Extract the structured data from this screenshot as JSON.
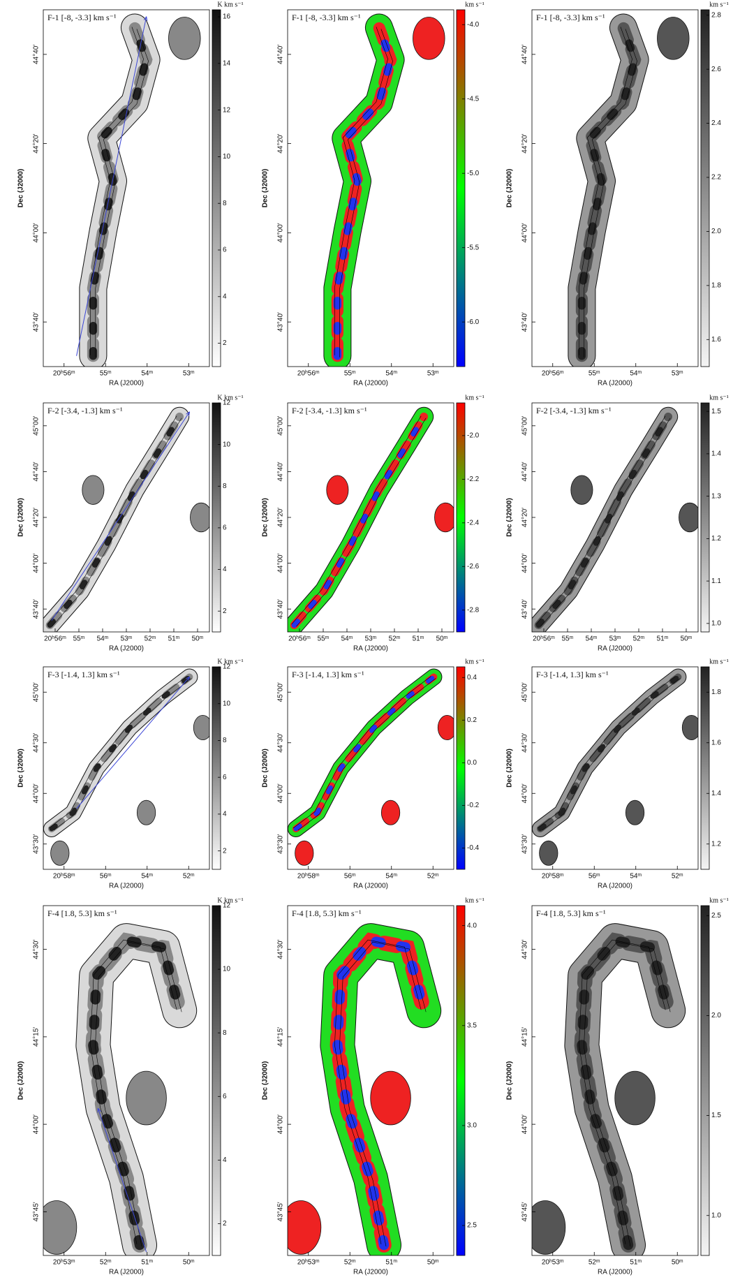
{
  "axis_labels": {
    "x": "RA (J2000)",
    "y": "Dec (J2000)"
  },
  "rows": [
    {
      "xticks": [
        "20ʰ56ᵐ",
        "55ᵐ",
        "54ᵐ",
        "53ᵐ"
      ],
      "yticks": [
        "43°40′",
        "44°00′",
        "44°20′",
        "44°40′"
      ],
      "panels": [
        {
          "title": "F-1 [-8, -3.3] km s⁻¹",
          "colorbar": {
            "unit": "K km s⁻¹",
            "lim": [
              1,
              16.3
            ],
            "ticks": [
              2,
              4,
              6,
              8,
              10,
              12,
              14,
              16
            ]
          }
        },
        {
          "title": "F-1 [-8, -3.3] km s⁻¹",
          "colorbar": {
            "unit": "km s⁻¹",
            "lim": [
              -6.3,
              -3.9
            ],
            "ticks": [
              {
                "value": -6,
                "label": "-6.0"
              },
              -5.5,
              {
                "value": -5,
                "label": "-5.0"
              },
              -4.5,
              {
                "value": -4,
                "label": "-4.0"
              }
            ]
          }
        },
        {
          "title": "F-1 [-8, -3.3] km s⁻¹",
          "colorbar": {
            "unit": "km s⁻¹",
            "lim": [
              1.5,
              2.82
            ],
            "ticks": [
              1.6,
              1.8,
              {
                "value": 2,
                "label": "2.0"
              },
              2.2,
              2.4,
              2.6,
              2.8
            ]
          }
        }
      ]
    },
    {
      "xticks": [
        "20ʰ56ᵐ",
        "55ᵐ",
        "54ᵐ",
        "53ᵐ",
        "52ᵐ",
        "51ᵐ",
        "50ᵐ"
      ],
      "yticks": [
        "43°40′",
        "44°00′",
        "44°20′",
        "44°40′",
        "45°00′"
      ],
      "panels": [
        {
          "title": "F-2 [-3.4, -1.3] km s⁻¹",
          "colorbar": {
            "unit": "K km s⁻¹",
            "lim": [
              1,
              12
            ],
            "ticks": [
              2,
              4,
              6,
              8,
              10,
              12
            ]
          }
        },
        {
          "title": "F-2 [-3.4, -1.3] km s⁻¹",
          "colorbar": {
            "unit": "km s⁻¹",
            "lim": [
              -2.9,
              -1.85
            ],
            "ticks": [
              -2.8,
              -2.6,
              -2.4,
              -2.2,
              {
                "value": -2,
                "label": "-2.0"
              }
            ]
          }
        },
        {
          "title": "F-2 [-3.4, -1.3] km s⁻¹",
          "colorbar": {
            "unit": "km s⁻¹",
            "lim": [
              0.98,
              1.52
            ],
            "ticks": [
              {
                "value": 1,
                "label": "1.0"
              },
              1.1,
              1.2,
              1.3,
              1.4,
              1.5
            ]
          }
        }
      ]
    },
    {
      "xticks": [
        "20ʰ58ᵐ",
        "56ᵐ",
        "54ᵐ",
        "52ᵐ"
      ],
      "yticks": [
        "43°30′",
        "44°00′",
        "44°30′",
        "45°00′"
      ],
      "panels": [
        {
          "title": "F-3 [-1.4, 1.3] km s⁻¹",
          "colorbar": {
            "unit": "K km s⁻¹",
            "lim": [
              1,
              12
            ],
            "ticks": [
              2,
              4,
              6,
              8,
              10,
              12
            ]
          }
        },
        {
          "title": "F-3 [-1.4, 1.3] km s⁻¹",
          "colorbar": {
            "unit": "km s⁻¹",
            "lim": [
              -0.5,
              0.45
            ],
            "ticks": [
              -0.4,
              -0.2,
              {
                "value": 0,
                "label": "0.0"
              },
              0.2,
              0.4
            ]
          }
        },
        {
          "title": "F-3 [-1.4, 1.3] km s⁻¹",
          "colorbar": {
            "unit": "km s⁻¹",
            "lim": [
              1.1,
              1.9
            ],
            "ticks": [
              1.2,
              1.4,
              1.6,
              1.8
            ]
          }
        }
      ]
    },
    {
      "xticks": [
        "20ʰ53ᵐ",
        "52ᵐ",
        "51ᵐ",
        "50ᵐ"
      ],
      "yticks": [
        "43°45′",
        "44°00′",
        "44°15′",
        "44°30′"
      ],
      "panels": [
        {
          "title": "F-4 [1.8, 5.3] km s⁻¹",
          "colorbar": {
            "unit": "K km s⁻¹",
            "lim": [
              1,
              12
            ],
            "ticks": [
              2,
              4,
              6,
              8,
              10,
              12
            ]
          }
        },
        {
          "title": "F-4 [1.8, 5.3] km s⁻¹",
          "colorbar": {
            "unit": "km s⁻¹",
            "lim": [
              2.35,
              4.1
            ],
            "ticks": [
              2.5,
              {
                "value": 3,
                "label": "3.0"
              },
              3.5,
              {
                "value": 4,
                "label": "4.0"
              }
            ]
          }
        },
        {
          "title": "F-4 [1.8, 5.3] km s⁻¹",
          "colorbar": {
            "unit": "km s⁻¹",
            "lim": [
              0.8,
              2.55
            ],
            "ticks": [
              {
                "value": 1,
                "label": "1.0"
              },
              1.5,
              {
                "value": 2,
                "label": "2.0"
              },
              2.5
            ]
          }
        }
      ]
    }
  ]
}
